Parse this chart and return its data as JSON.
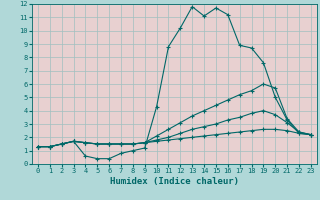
{
  "xlabel": "Humidex (Indice chaleur)",
  "bg_color": "#b0d8d8",
  "plot_bg_color": "#e8d0d0",
  "grid_color": "#a0c0c0",
  "line_color": "#006868",
  "xlim": [
    -0.5,
    23.5
  ],
  "ylim": [
    0,
    12
  ],
  "xticks": [
    0,
    1,
    2,
    3,
    4,
    5,
    6,
    7,
    8,
    9,
    10,
    11,
    12,
    13,
    14,
    15,
    16,
    17,
    18,
    19,
    20,
    21,
    22,
    23
  ],
  "yticks": [
    0,
    1,
    2,
    3,
    4,
    5,
    6,
    7,
    8,
    9,
    10,
    11,
    12
  ],
  "series": [
    {
      "x": [
        0,
        1,
        2,
        3,
        4,
        5,
        6,
        7,
        8,
        9,
        10,
        11,
        12,
        13,
        14,
        15,
        16,
        17,
        18,
        19,
        20,
        21,
        22,
        23
      ],
      "y": [
        1.3,
        1.3,
        1.5,
        1.7,
        0.6,
        0.4,
        0.4,
        0.8,
        1.0,
        1.2,
        4.3,
        8.8,
        10.2,
        11.8,
        11.1,
        11.7,
        11.2,
        8.9,
        8.7,
        7.6,
        5.0,
        3.3,
        2.3,
        2.2
      ]
    },
    {
      "x": [
        0,
        1,
        2,
        3,
        4,
        5,
        6,
        7,
        8,
        9,
        10,
        11,
        12,
        13,
        14,
        15,
        16,
        17,
        18,
        19,
        20,
        21,
        22,
        23
      ],
      "y": [
        1.3,
        1.3,
        1.5,
        1.7,
        1.6,
        1.5,
        1.5,
        1.5,
        1.5,
        1.6,
        2.1,
        2.6,
        3.1,
        3.6,
        4.0,
        4.4,
        4.8,
        5.2,
        5.5,
        6.0,
        5.7,
        3.4,
        2.4,
        2.2
      ]
    },
    {
      "x": [
        0,
        1,
        2,
        3,
        4,
        5,
        6,
        7,
        8,
        9,
        10,
        11,
        12,
        13,
        14,
        15,
        16,
        17,
        18,
        19,
        20,
        21,
        22,
        23
      ],
      "y": [
        1.3,
        1.3,
        1.5,
        1.7,
        1.6,
        1.5,
        1.5,
        1.5,
        1.5,
        1.6,
        1.8,
        2.0,
        2.3,
        2.6,
        2.8,
        3.0,
        3.3,
        3.5,
        3.8,
        4.0,
        3.7,
        3.1,
        2.4,
        2.2
      ]
    },
    {
      "x": [
        0,
        1,
        2,
        3,
        4,
        5,
        6,
        7,
        8,
        9,
        10,
        11,
        12,
        13,
        14,
        15,
        16,
        17,
        18,
        19,
        20,
        21,
        22,
        23
      ],
      "y": [
        1.3,
        1.3,
        1.5,
        1.7,
        1.6,
        1.5,
        1.5,
        1.5,
        1.5,
        1.6,
        1.7,
        1.8,
        1.9,
        2.0,
        2.1,
        2.2,
        2.3,
        2.4,
        2.5,
        2.6,
        2.6,
        2.5,
        2.3,
        2.2
      ]
    }
  ]
}
